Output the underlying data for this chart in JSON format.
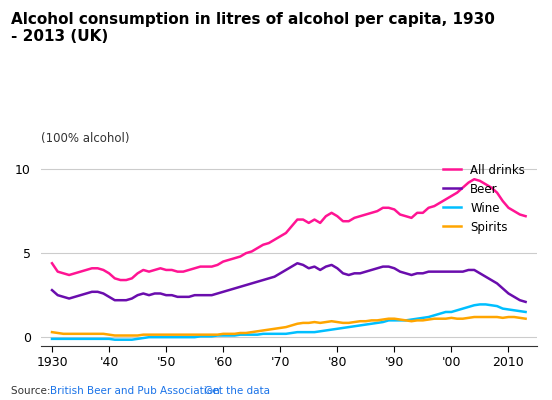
{
  "title": "Alcohol consumption in litres of alcohol per capita, 1930\n- 2013 (UK)",
  "subtitle": "(100% alcohol)",
  "source_text": "Source: ",
  "source_link1": "British Beer and Pub Association",
  "source_link2": " Get the data",
  "ylabel": "",
  "xlabel": "",
  "ylim": [
    -0.5,
    11
  ],
  "yticks": [
    0,
    5,
    10
  ],
  "xticks": [
    1930,
    1940,
    1950,
    1960,
    1970,
    1980,
    1990,
    2000,
    2010
  ],
  "xticklabels": [
    "1930",
    "'40",
    "'50",
    "'60",
    "'70",
    "'80",
    "'90",
    "'00",
    "2010"
  ],
  "legend_labels": [
    "All drinks",
    "Beer",
    "Wine",
    "Spirits"
  ],
  "colors": {
    "all_drinks": "#FF1493",
    "beer": "#6A0DAD",
    "wine": "#00BFFF",
    "spirits": "#FFA500"
  },
  "background_color": "#ffffff",
  "grid_color": "#cccccc",
  "years": [
    1930,
    1931,
    1932,
    1933,
    1934,
    1935,
    1936,
    1937,
    1938,
    1939,
    1940,
    1941,
    1942,
    1943,
    1944,
    1945,
    1946,
    1947,
    1948,
    1949,
    1950,
    1951,
    1952,
    1953,
    1954,
    1955,
    1956,
    1957,
    1958,
    1959,
    1960,
    1961,
    1962,
    1963,
    1964,
    1965,
    1966,
    1967,
    1968,
    1969,
    1970,
    1971,
    1972,
    1973,
    1974,
    1975,
    1976,
    1977,
    1978,
    1979,
    1980,
    1981,
    1982,
    1983,
    1984,
    1985,
    1986,
    1987,
    1988,
    1989,
    1990,
    1991,
    1992,
    1993,
    1994,
    1995,
    1996,
    1997,
    1998,
    1999,
    2000,
    2001,
    2002,
    2003,
    2004,
    2005,
    2006,
    2007,
    2008,
    2009,
    2010,
    2011,
    2012,
    2013
  ],
  "all_drinks": [
    4.4,
    3.9,
    3.8,
    3.7,
    3.8,
    3.9,
    4.0,
    4.1,
    4.1,
    4.0,
    3.8,
    3.5,
    3.4,
    3.4,
    3.5,
    3.8,
    4.0,
    3.9,
    4.0,
    4.1,
    4.0,
    4.0,
    3.9,
    3.9,
    4.0,
    4.1,
    4.2,
    4.2,
    4.2,
    4.3,
    4.5,
    4.6,
    4.7,
    4.8,
    5.0,
    5.1,
    5.3,
    5.5,
    5.6,
    5.8,
    6.0,
    6.2,
    6.6,
    7.0,
    7.0,
    6.8,
    7.0,
    6.8,
    7.2,
    7.4,
    7.2,
    6.9,
    6.9,
    7.1,
    7.2,
    7.3,
    7.4,
    7.5,
    7.7,
    7.7,
    7.6,
    7.3,
    7.2,
    7.1,
    7.4,
    7.4,
    7.7,
    7.8,
    8.0,
    8.2,
    8.4,
    8.6,
    8.9,
    9.2,
    9.4,
    9.3,
    9.1,
    8.9,
    8.6,
    8.1,
    7.7,
    7.5,
    7.3,
    7.2
  ],
  "beer": [
    2.8,
    2.5,
    2.4,
    2.3,
    2.4,
    2.5,
    2.6,
    2.7,
    2.7,
    2.6,
    2.4,
    2.2,
    2.2,
    2.2,
    2.3,
    2.5,
    2.6,
    2.5,
    2.6,
    2.6,
    2.5,
    2.5,
    2.4,
    2.4,
    2.4,
    2.5,
    2.5,
    2.5,
    2.5,
    2.6,
    2.7,
    2.8,
    2.9,
    3.0,
    3.1,
    3.2,
    3.3,
    3.4,
    3.5,
    3.6,
    3.8,
    4.0,
    4.2,
    4.4,
    4.3,
    4.1,
    4.2,
    4.0,
    4.2,
    4.3,
    4.1,
    3.8,
    3.7,
    3.8,
    3.8,
    3.9,
    4.0,
    4.1,
    4.2,
    4.2,
    4.1,
    3.9,
    3.8,
    3.7,
    3.8,
    3.8,
    3.9,
    3.9,
    3.9,
    3.9,
    3.9,
    3.9,
    3.9,
    4.0,
    4.0,
    3.8,
    3.6,
    3.4,
    3.2,
    2.9,
    2.6,
    2.4,
    2.2,
    2.1
  ],
  "wine": [
    -0.1,
    -0.1,
    -0.1,
    -0.1,
    -0.1,
    -0.1,
    -0.1,
    -0.1,
    -0.1,
    -0.1,
    -0.1,
    -0.15,
    -0.15,
    -0.15,
    -0.15,
    -0.1,
    -0.05,
    0.0,
    0.0,
    0.0,
    0.0,
    0.0,
    0.0,
    0.0,
    0.0,
    0.0,
    0.05,
    0.05,
    0.05,
    0.1,
    0.1,
    0.1,
    0.1,
    0.15,
    0.15,
    0.15,
    0.15,
    0.2,
    0.2,
    0.2,
    0.2,
    0.2,
    0.25,
    0.3,
    0.3,
    0.3,
    0.3,
    0.35,
    0.4,
    0.45,
    0.5,
    0.55,
    0.6,
    0.65,
    0.7,
    0.75,
    0.8,
    0.85,
    0.9,
    1.0,
    1.0,
    1.0,
    1.0,
    1.05,
    1.1,
    1.15,
    1.2,
    1.3,
    1.4,
    1.5,
    1.5,
    1.6,
    1.7,
    1.8,
    1.9,
    1.95,
    1.95,
    1.9,
    1.85,
    1.7,
    1.65,
    1.6,
    1.55,
    1.5
  ],
  "spirits": [
    0.3,
    0.25,
    0.2,
    0.2,
    0.2,
    0.2,
    0.2,
    0.2,
    0.2,
    0.2,
    0.15,
    0.1,
    0.1,
    0.1,
    0.1,
    0.1,
    0.15,
    0.15,
    0.15,
    0.15,
    0.15,
    0.15,
    0.15,
    0.15,
    0.15,
    0.15,
    0.15,
    0.15,
    0.15,
    0.15,
    0.2,
    0.2,
    0.2,
    0.25,
    0.25,
    0.3,
    0.35,
    0.4,
    0.45,
    0.5,
    0.55,
    0.6,
    0.7,
    0.8,
    0.85,
    0.85,
    0.9,
    0.85,
    0.9,
    0.95,
    0.9,
    0.85,
    0.85,
    0.9,
    0.95,
    0.95,
    1.0,
    1.0,
    1.05,
    1.1,
    1.1,
    1.05,
    1.0,
    0.95,
    1.0,
    1.0,
    1.05,
    1.1,
    1.1,
    1.1,
    1.15,
    1.1,
    1.1,
    1.15,
    1.2,
    1.2,
    1.2,
    1.2,
    1.2,
    1.15,
    1.2,
    1.2,
    1.15,
    1.1
  ]
}
